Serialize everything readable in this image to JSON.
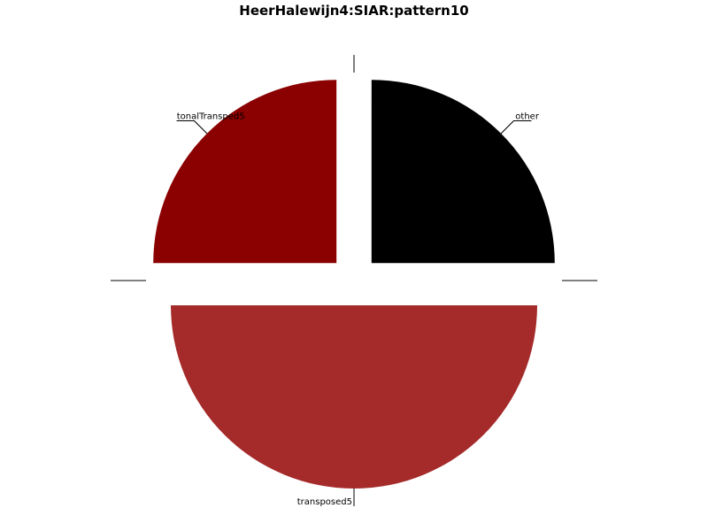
{
  "chart_data": {
    "type": "pie",
    "title": "HeerHalewijn4:SIAR:pattern10",
    "slices": [
      {
        "label": "other",
        "value": 25,
        "color": "#000000",
        "explode": true
      },
      {
        "label": "",
        "value": 0,
        "color": "#000000",
        "explode": true
      },
      {
        "label": "transposed5",
        "value": 50,
        "color": "#a52a2a",
        "explode": true
      },
      {
        "label": "",
        "value": 0,
        "color": "#000000",
        "explode": true
      },
      {
        "label": "tonalTransped5",
        "value": 25,
        "color": "#8b0000",
        "explode": true
      },
      {
        "label": "",
        "value": 0,
        "color": "#000000",
        "explode": true
      }
    ]
  }
}
